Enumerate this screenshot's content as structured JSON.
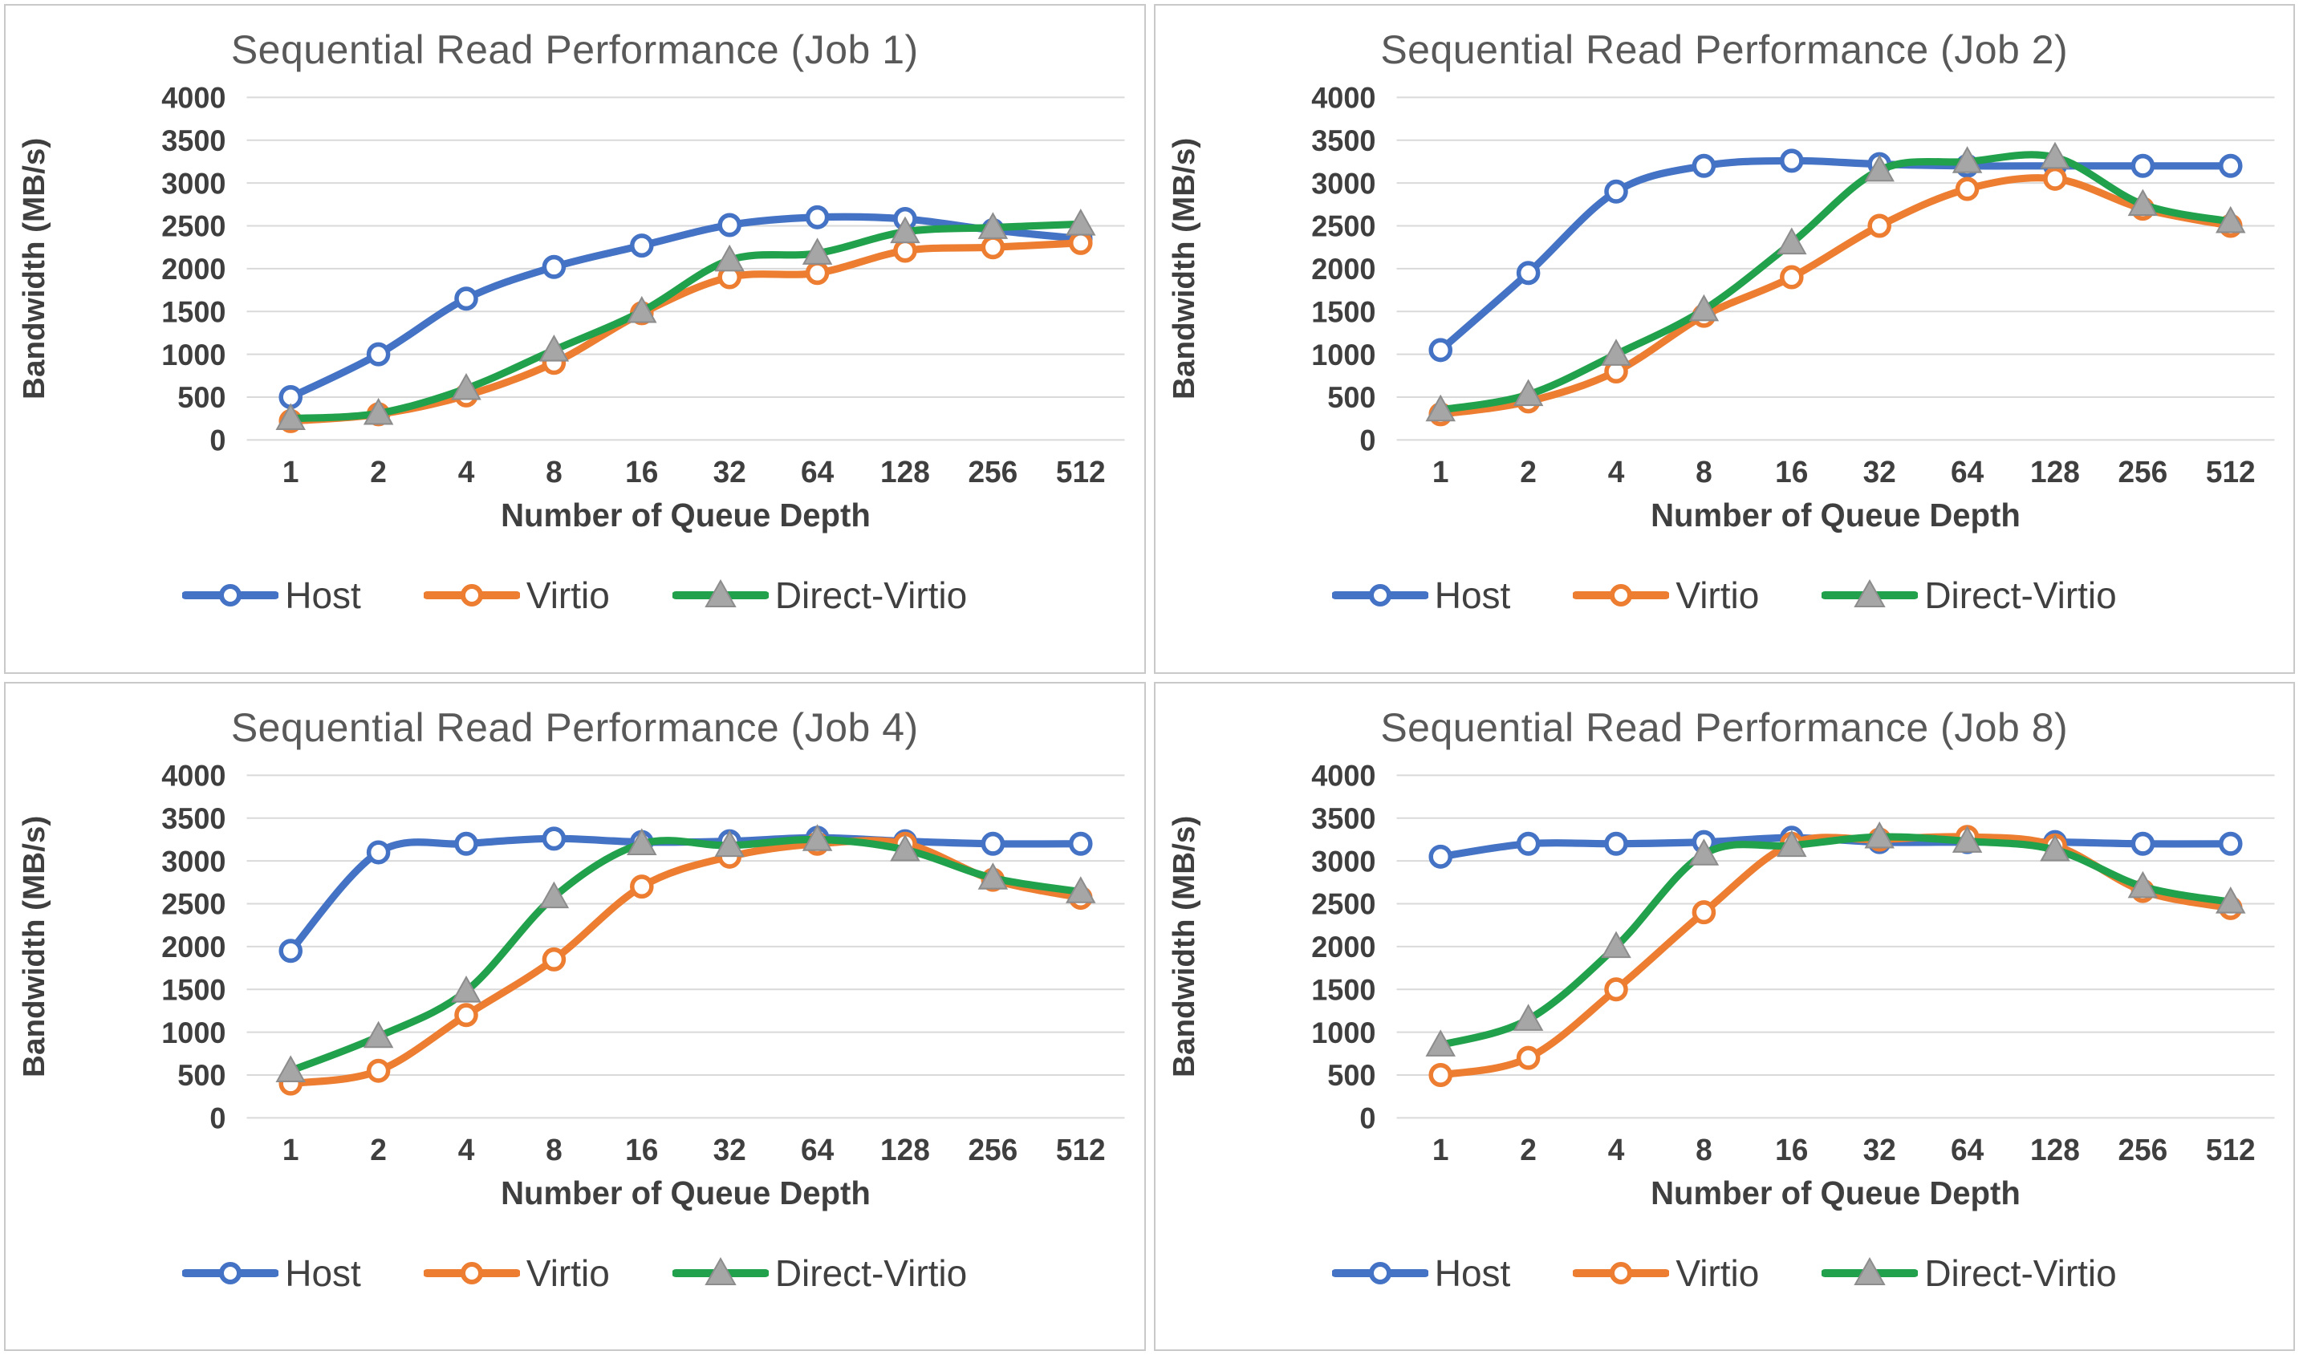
{
  "colors": {
    "host": "#4472C4",
    "virtio": "#ED7D31",
    "direct_virtio": "#21A14B",
    "triangle_marker_fill": "#A6A6A6",
    "triangle_marker_edge": "#8C8C8C",
    "gridline": "#D9D9D9",
    "title_text": "#595959",
    "axis_text": "#3F3F3F",
    "legend_text": "#404040"
  },
  "chart_data": [
    {
      "type": "line",
      "title": "Sequential Read Performance (Job 1)",
      "xlabel": "Number of Queue Depth",
      "ylabel": "Bandwidth (MB/s)",
      "categories": [
        "1",
        "2",
        "4",
        "8",
        "16",
        "32",
        "64",
        "128",
        "256",
        "512"
      ],
      "ylim": [
        0,
        4000
      ],
      "yticks": [
        0,
        500,
        1000,
        1500,
        2000,
        2500,
        3000,
        3500,
        4000
      ],
      "grid": true,
      "legend_position": "bottom",
      "series": [
        {
          "name": "Host",
          "color": "#4472C4",
          "marker": "circle-open",
          "values": [
            500,
            1000,
            1650,
            2020,
            2270,
            2510,
            2600,
            2580,
            2450,
            2350
          ]
        },
        {
          "name": "Virtio",
          "color": "#ED7D31",
          "marker": "circle-open",
          "values": [
            220,
            300,
            520,
            900,
            1480,
            1900,
            1950,
            2210,
            2250,
            2300
          ]
        },
        {
          "name": "Direct-Virtio",
          "color": "#21A14B",
          "marker": "triangle-filled",
          "marker_color": "#A6A6A6",
          "marker_edge": "#8C8C8C",
          "values": [
            250,
            310,
            600,
            1050,
            1500,
            2100,
            2180,
            2430,
            2480,
            2520
          ]
        }
      ]
    },
    {
      "type": "line",
      "title": "Sequential Read Performance (Job 2)",
      "xlabel": "Number of Queue Depth",
      "ylabel": "Bandwidth (MB/s)",
      "categories": [
        "1",
        "2",
        "4",
        "8",
        "16",
        "32",
        "64",
        "128",
        "256",
        "512"
      ],
      "ylim": [
        0,
        4000
      ],
      "yticks": [
        0,
        500,
        1000,
        1500,
        2000,
        2500,
        3000,
        3500,
        4000
      ],
      "grid": true,
      "legend_position": "bottom",
      "series": [
        {
          "name": "Host",
          "color": "#4472C4",
          "marker": "circle-open",
          "values": [
            1050,
            1950,
            2900,
            3200,
            3260,
            3220,
            3200,
            3200,
            3200,
            3200
          ]
        },
        {
          "name": "Virtio",
          "color": "#ED7D31",
          "marker": "circle-open",
          "values": [
            300,
            450,
            800,
            1450,
            1900,
            2500,
            2930,
            3050,
            2700,
            2500
          ]
        },
        {
          "name": "Direct-Virtio",
          "color": "#21A14B",
          "marker": "triangle-filled",
          "marker_color": "#A6A6A6",
          "marker_edge": "#8C8C8C",
          "values": [
            350,
            530,
            1000,
            1520,
            2300,
            3150,
            3250,
            3300,
            2750,
            2550
          ]
        }
      ]
    },
    {
      "type": "line",
      "title": "Sequential Read Performance (Job 4)",
      "xlabel": "Number of Queue Depth",
      "ylabel": "Bandwidth (MB/s)",
      "categories": [
        "1",
        "2",
        "4",
        "8",
        "16",
        "32",
        "64",
        "128",
        "256",
        "512"
      ],
      "ylim": [
        0,
        4000
      ],
      "yticks": [
        0,
        500,
        1000,
        1500,
        2000,
        2500,
        3000,
        3500,
        4000
      ],
      "grid": true,
      "legend_position": "bottom",
      "series": [
        {
          "name": "Host",
          "color": "#4472C4",
          "marker": "circle-open",
          "values": [
            1950,
            3100,
            3200,
            3260,
            3220,
            3230,
            3270,
            3230,
            3200,
            3200
          ]
        },
        {
          "name": "Virtio",
          "color": "#ED7D31",
          "marker": "circle-open",
          "values": [
            400,
            550,
            1200,
            1850,
            2700,
            3050,
            3200,
            3200,
            2780,
            2570
          ]
        },
        {
          "name": "Direct-Virtio",
          "color": "#21A14B",
          "marker": "triangle-filled",
          "marker_color": "#A6A6A6",
          "marker_edge": "#8C8C8C",
          "values": [
            550,
            950,
            1480,
            2580,
            3200,
            3180,
            3250,
            3130,
            2800,
            2640
          ]
        }
      ]
    },
    {
      "type": "line",
      "title": "Sequential Read Performance (Job 8)",
      "xlabel": "Number of Queue Depth",
      "ylabel": "Bandwidth (MB/s)",
      "categories": [
        "1",
        "2",
        "4",
        "8",
        "16",
        "32",
        "64",
        "128",
        "256",
        "512"
      ],
      "ylim": [
        0,
        4000
      ],
      "yticks": [
        0,
        500,
        1000,
        1500,
        2000,
        2500,
        3000,
        3500,
        4000
      ],
      "grid": true,
      "legend_position": "bottom",
      "series": [
        {
          "name": "Host",
          "color": "#4472C4",
          "marker": "circle-open",
          "values": [
            3050,
            3200,
            3200,
            3220,
            3270,
            3220,
            3220,
            3220,
            3200,
            3200
          ]
        },
        {
          "name": "Virtio",
          "color": "#ED7D31",
          "marker": "circle-open",
          "values": [
            500,
            700,
            1500,
            2400,
            3200,
            3250,
            3280,
            3180,
            2650,
            2450
          ]
        },
        {
          "name": "Direct-Virtio",
          "color": "#21A14B",
          "marker": "triangle-filled",
          "marker_color": "#A6A6A6",
          "marker_edge": "#8C8C8C",
          "values": [
            850,
            1150,
            2000,
            3080,
            3180,
            3280,
            3230,
            3130,
            2700,
            2520
          ]
        }
      ]
    }
  ]
}
